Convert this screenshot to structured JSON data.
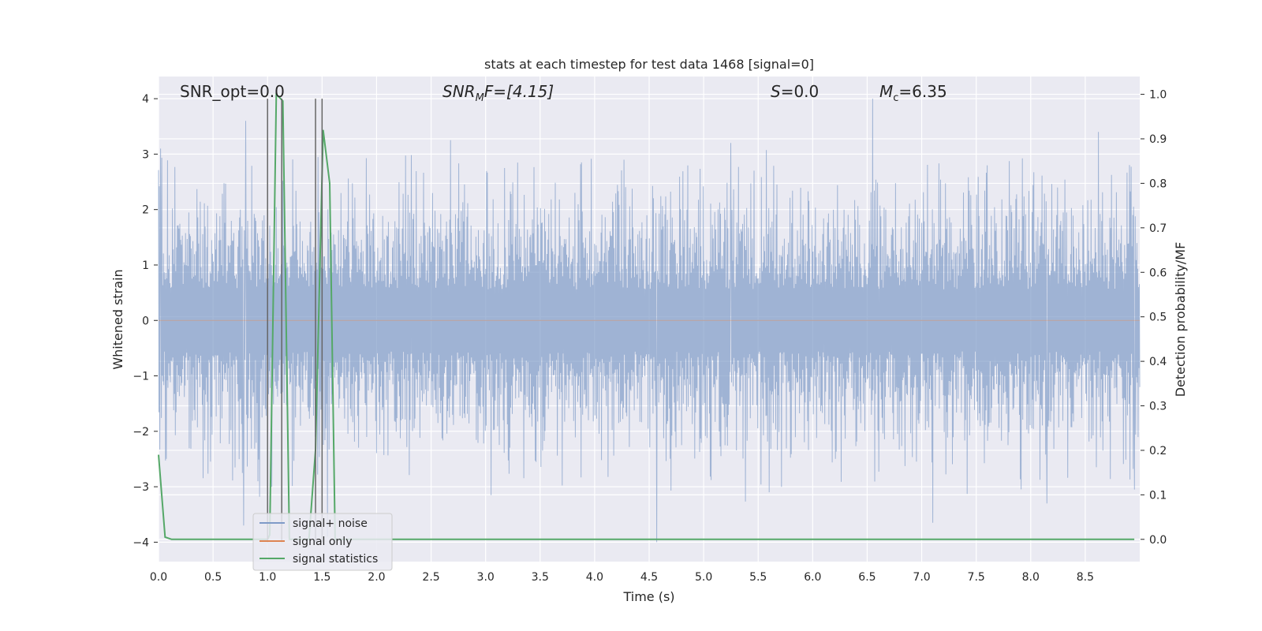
{
  "chart_data": {
    "type": "line",
    "title": "stats at each timestep for test data 1468 [signal=0]",
    "xlabel": "Time (s)",
    "ylabel": "Whitened strain",
    "y2label": "Detection probability/MF",
    "xlim": [
      0.0,
      9.0
    ],
    "ylim": [
      -4.35,
      4.4
    ],
    "y2lim": [
      -0.05,
      1.04
    ],
    "x_ticks": [
      "0.0",
      "0.5",
      "1.0",
      "1.5",
      "2.0",
      "2.5",
      "3.0",
      "3.5",
      "4.0",
      "4.5",
      "5.0",
      "5.5",
      "6.0",
      "6.5",
      "7.0",
      "7.5",
      "8.0",
      "8.5"
    ],
    "y_ticks": [
      "4",
      "3",
      "2",
      "1",
      "0",
      "−1",
      "−2",
      "−3",
      "−4"
    ],
    "y2_ticks": [
      "1.0",
      "0.9",
      "0.8",
      "0.7",
      "0.6",
      "0.5",
      "0.4",
      "0.3",
      "0.2",
      "0.1",
      "0.0"
    ],
    "grid": true,
    "legend_placement": "lower-left",
    "annotations": {
      "snr_opt": "SNR_opt=0.0",
      "snr_mf_var": "SNR",
      "snr_mf_sub": "M",
      "snr_mf_rest": "F=[4.15]",
      "s_var": "S",
      "s_rest": "=0.0",
      "mc_var": "M",
      "mc_sub": "c",
      "mc_rest": "=6.35"
    },
    "series": [
      {
        "name": "signal+ noise",
        "color": "#7f9bc8",
        "axis": "left",
        "kind": "noise",
        "envelope_typical": 1.6,
        "envelope_range": [
          -4.0,
          4.0
        ],
        "peaks": [
          {
            "x": 0.02,
            "y": 3.1
          },
          {
            "x": 0.8,
            "y": 3.6
          },
          {
            "x": 0.78,
            "y": -3.7
          },
          {
            "x": 1.5,
            "y": 3.3
          },
          {
            "x": 1.55,
            "y": -3.9
          },
          {
            "x": 2.68,
            "y": 3.25
          },
          {
            "x": 3.05,
            "y": -3.15
          },
          {
            "x": 4.57,
            "y": -4.0
          },
          {
            "x": 5.25,
            "y": 3.2
          },
          {
            "x": 5.6,
            "y": -3.1
          },
          {
            "x": 6.55,
            "y": 4.0
          },
          {
            "x": 7.1,
            "y": -3.65
          },
          {
            "x": 8.15,
            "y": -3.3
          },
          {
            "x": 8.62,
            "y": 3.4
          },
          {
            "x": 8.95,
            "y": -3.05
          }
        ]
      },
      {
        "name": "signal only",
        "color": "#dd8452",
        "axis": "left",
        "kind": "line",
        "x": [
          0.0,
          9.0
        ],
        "y": [
          0.0,
          0.0
        ]
      },
      {
        "name": "signal statistics",
        "color": "#55a868",
        "axis": "right",
        "kind": "line",
        "x": [
          0.0,
          0.06,
          0.12,
          0.2,
          0.5,
          0.9,
          1.0,
          1.02,
          1.08,
          1.14,
          1.2,
          1.25,
          1.3,
          1.38,
          1.44,
          1.51,
          1.57,
          1.62,
          1.7,
          2.0,
          3.0,
          4.0,
          5.0,
          6.0,
          7.0,
          8.0,
          8.95
        ],
        "y": [
          0.19,
          0.005,
          0.0,
          0.0,
          0.0,
          0.0,
          0.0,
          0.01,
          1.0,
          0.985,
          0.0,
          0.0,
          0.0,
          0.0,
          0.2,
          0.92,
          0.8,
          0.0,
          0.0,
          0.0,
          0.0,
          0.0,
          0.0,
          0.0,
          0.0,
          0.0,
          0.0
        ]
      }
    ],
    "vertical_markers": {
      "color": "#666666",
      "x": [
        1.0,
        1.13,
        1.44,
        1.5
      ],
      "y_range": [
        -4.0,
        4.0
      ]
    }
  }
}
